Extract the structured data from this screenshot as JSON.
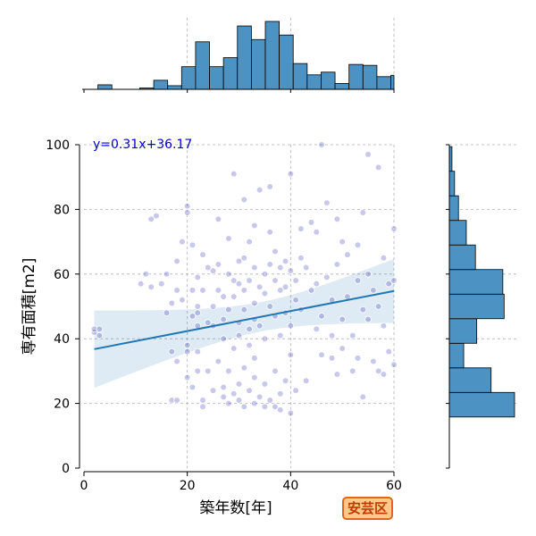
{
  "chart_data": {
    "type": "scatter",
    "xlabel": "築年数[年]",
    "ylabel": "専有面積[m2]",
    "xlim": [
      0,
      60
    ],
    "ylim": [
      0,
      100
    ],
    "x_ticks": [
      0,
      20,
      40,
      60
    ],
    "y_ticks": [
      0,
      20,
      40,
      60,
      80,
      100
    ],
    "grid": true,
    "colors": {
      "points": "#3838b8",
      "bars": "#4c92c3",
      "regression": "#1f77b4",
      "equation": "#0000c8"
    },
    "regression": {
      "label": "y=0.31x+36.17",
      "slope": 0.31,
      "intercept": 36.17
    },
    "points": [
      [
        2,
        42
      ],
      [
        2,
        43
      ],
      [
        3,
        43
      ],
      [
        3,
        41
      ],
      [
        11,
        57
      ],
      [
        12,
        60
      ],
      [
        13,
        56
      ],
      [
        13,
        77
      ],
      [
        14,
        78
      ],
      [
        15,
        57
      ],
      [
        16,
        48
      ],
      [
        16,
        60
      ],
      [
        17,
        51
      ],
      [
        18,
        55
      ],
      [
        18,
        64
      ],
      [
        17,
        21
      ],
      [
        17,
        36
      ],
      [
        18,
        21
      ],
      [
        18,
        33
      ],
      [
        19,
        52
      ],
      [
        19,
        70
      ],
      [
        20,
        81
      ],
      [
        20,
        79
      ],
      [
        20,
        36
      ],
      [
        20,
        28
      ],
      [
        20,
        38
      ],
      [
        21,
        69
      ],
      [
        21,
        55
      ],
      [
        21,
        47
      ],
      [
        21,
        25
      ],
      [
        22,
        44
      ],
      [
        22,
        48
      ],
      [
        22,
        50
      ],
      [
        22,
        59
      ],
      [
        22,
        36
      ],
      [
        22,
        30
      ],
      [
        23,
        66
      ],
      [
        23,
        55
      ],
      [
        23,
        21
      ],
      [
        23,
        19
      ],
      [
        24,
        62
      ],
      [
        24,
        45
      ],
      [
        24,
        30
      ],
      [
        25,
        61
      ],
      [
        25,
        50
      ],
      [
        25,
        44
      ],
      [
        25,
        24
      ],
      [
        26,
        63
      ],
      [
        26,
        55
      ],
      [
        26,
        77
      ],
      [
        26,
        33
      ],
      [
        27,
        40
      ],
      [
        27,
        46
      ],
      [
        27,
        53
      ],
      [
        27,
        25
      ],
      [
        27,
        22
      ],
      [
        28,
        49
      ],
      [
        28,
        60
      ],
      [
        28,
        71
      ],
      [
        28,
        30
      ],
      [
        28,
        20
      ],
      [
        29,
        53
      ],
      [
        29,
        58
      ],
      [
        29,
        91
      ],
      [
        29,
        37
      ],
      [
        29,
        23
      ],
      [
        30,
        64
      ],
      [
        30,
        57
      ],
      [
        30,
        45
      ],
      [
        30,
        41
      ],
      [
        30,
        26
      ],
      [
        30,
        21
      ],
      [
        31,
        65
      ],
      [
        31,
        55
      ],
      [
        31,
        49
      ],
      [
        31,
        83
      ],
      [
        31,
        31
      ],
      [
        31,
        19
      ],
      [
        32,
        58
      ],
      [
        32,
        43
      ],
      [
        32,
        38
      ],
      [
        32,
        70
      ],
      [
        32,
        24
      ],
      [
        33,
        62
      ],
      [
        33,
        51
      ],
      [
        33,
        46
      ],
      [
        33,
        75
      ],
      [
        33,
        34
      ],
      [
        33,
        28
      ],
      [
        33,
        20
      ],
      [
        34,
        86
      ],
      [
        34,
        56
      ],
      [
        34,
        44
      ],
      [
        34,
        22
      ],
      [
        35,
        60
      ],
      [
        35,
        54
      ],
      [
        35,
        40
      ],
      [
        35,
        26
      ],
      [
        35,
        19
      ],
      [
        36,
        87
      ],
      [
        36,
        63
      ],
      [
        36,
        50
      ],
      [
        36,
        73
      ],
      [
        36,
        21
      ],
      [
        37,
        58
      ],
      [
        37,
        47
      ],
      [
        37,
        67
      ],
      [
        37,
        30
      ],
      [
        37,
        19
      ],
      [
        38,
        62
      ],
      [
        38,
        55
      ],
      [
        38,
        41
      ],
      [
        38,
        23
      ],
      [
        38,
        18
      ],
      [
        39,
        64
      ],
      [
        39,
        56
      ],
      [
        39,
        48
      ],
      [
        39,
        27
      ],
      [
        40,
        91
      ],
      [
        40,
        61
      ],
      [
        40,
        44
      ],
      [
        40,
        35
      ],
      [
        40,
        17
      ],
      [
        41,
        58
      ],
      [
        41,
        52
      ],
      [
        41,
        24
      ],
      [
        42,
        65
      ],
      [
        42,
        49
      ],
      [
        42,
        74
      ],
      [
        43,
        62
      ],
      [
        43,
        27
      ],
      [
        44,
        76
      ],
      [
        44,
        55
      ],
      [
        45,
        57
      ],
      [
        45,
        73
      ],
      [
        45,
        43
      ],
      [
        46,
        47
      ],
      [
        46,
        35
      ],
      [
        46,
        100
      ],
      [
        47,
        82
      ],
      [
        47,
        59
      ],
      [
        48,
        52
      ],
      [
        48,
        41
      ],
      [
        48,
        34
      ],
      [
        49,
        77
      ],
      [
        49,
        63
      ],
      [
        49,
        29
      ],
      [
        50,
        70
      ],
      [
        50,
        46
      ],
      [
        50,
        37
      ],
      [
        51,
        66
      ],
      [
        51,
        53
      ],
      [
        52,
        41
      ],
      [
        52,
        30
      ],
      [
        53,
        69
      ],
      [
        53,
        58
      ],
      [
        53,
        34
      ],
      [
        54,
        79
      ],
      [
        54,
        49
      ],
      [
        54,
        22
      ],
      [
        55,
        97
      ],
      [
        55,
        60
      ],
      [
        55,
        46
      ],
      [
        56,
        55
      ],
      [
        56,
        33
      ],
      [
        57,
        93
      ],
      [
        57,
        50
      ],
      [
        57,
        30
      ],
      [
        58,
        65
      ],
      [
        58,
        44
      ],
      [
        58,
        29
      ],
      [
        59,
        57
      ],
      [
        59,
        36
      ],
      [
        60,
        74
      ],
      [
        60,
        58
      ],
      [
        60,
        32
      ]
    ],
    "x_histogram": {
      "bin_edges": [
        0,
        2.7,
        5.4,
        8.1,
        10.8,
        13.5,
        16.2,
        18.9,
        21.6,
        24.3,
        27,
        29.7,
        32.4,
        35.1,
        37.8,
        40.5,
        43.2,
        45.9,
        48.6,
        51.3,
        54,
        56.7,
        59.4,
        62.1
      ],
      "counts": [
        0,
        1,
        0,
        0,
        0.3,
        2,
        0.8,
        5,
        10.5,
        5,
        7,
        14,
        11,
        15,
        12,
        5.7,
        3.2,
        3.8,
        1.3,
        5.5,
        5.3,
        2.8,
        3.1
      ]
    },
    "y_histogram": {
      "bin_edges": [
        15.8,
        23.4,
        31,
        38.6,
        46.2,
        53.8,
        61.4,
        69,
        76.6,
        84.2,
        91.8,
        99.4
      ],
      "counts": [
        25,
        16,
        5.5,
        10.5,
        21,
        20.5,
        10,
        6.5,
        3.5,
        2,
        1
      ]
    }
  },
  "badge": {
    "label": "安芸区"
  }
}
